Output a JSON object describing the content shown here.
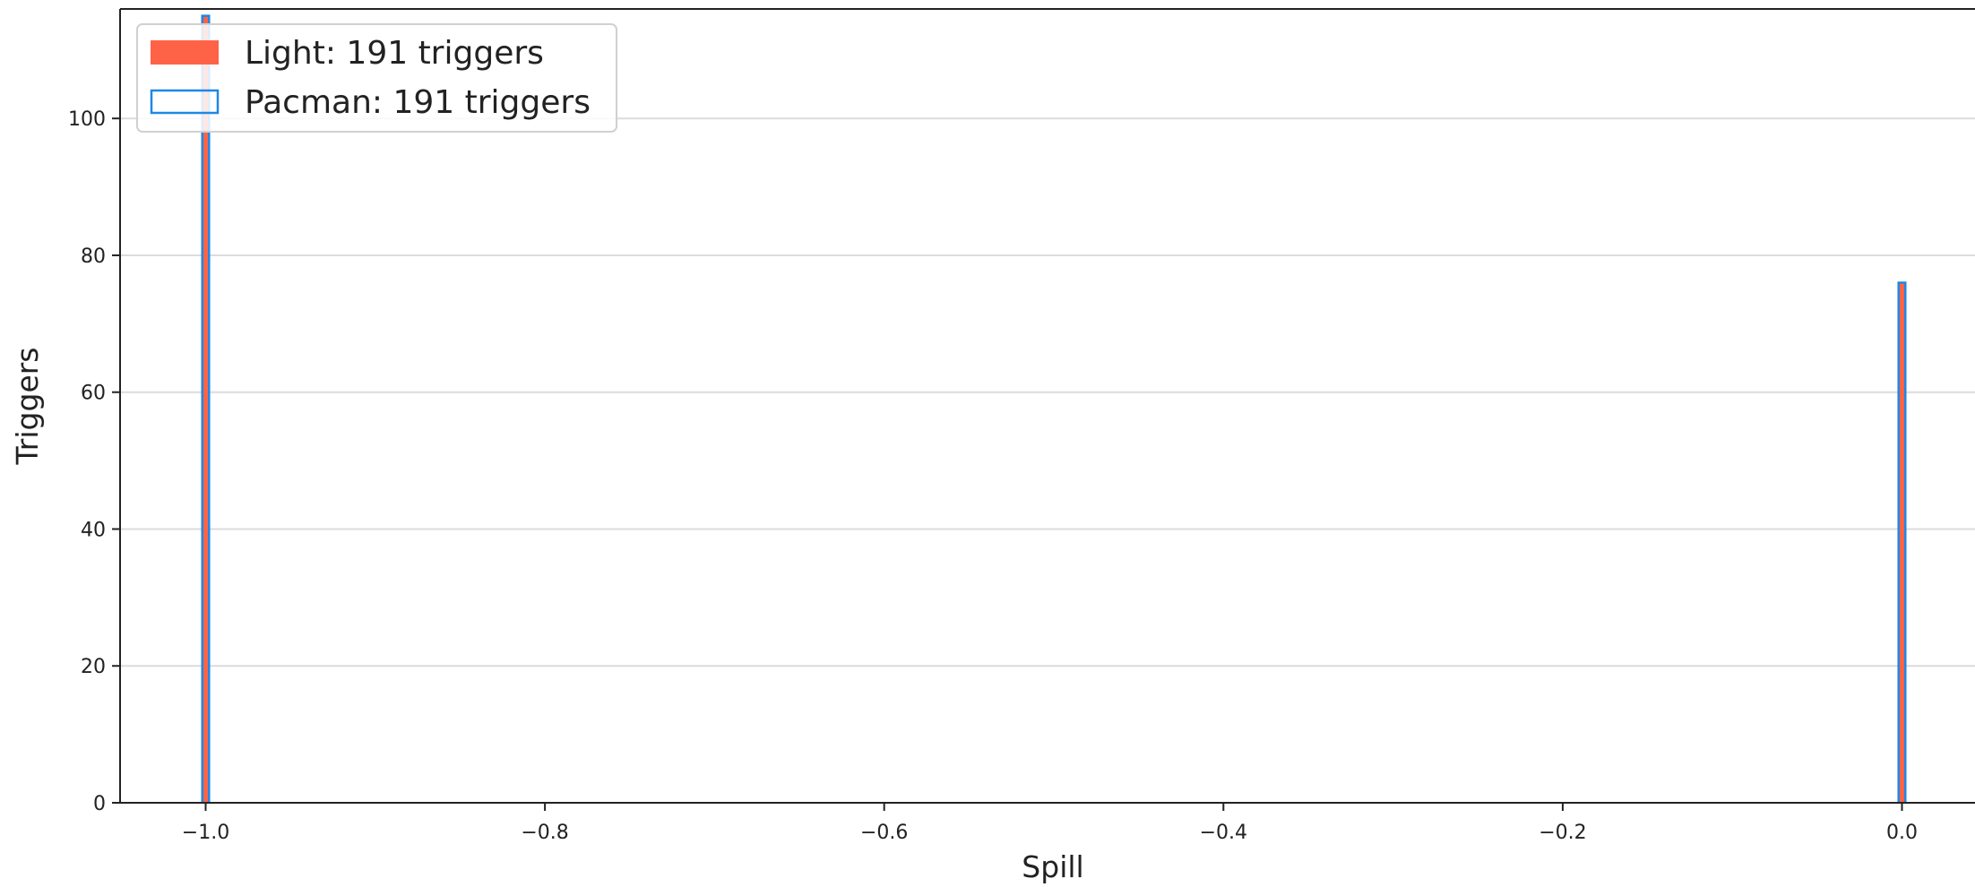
{
  "chart_data": {
    "type": "bar",
    "title": "",
    "xlabel": "Spill",
    "ylabel": "Triggers",
    "xlim": [
      -1.05,
      0.0
    ],
    "ylim": [
      0,
      116
    ],
    "xticks": [
      -1.0,
      -0.8,
      -0.6,
      -0.4,
      -0.2,
      0.0
    ],
    "xtick_labels": [
      "−1.0",
      "−0.8",
      "−0.6",
      "−0.4",
      "−0.2",
      "0.0"
    ],
    "yticks": [
      0,
      20,
      40,
      60,
      80,
      100
    ],
    "ytick_labels": [
      "0",
      "20",
      "40",
      "60",
      "80",
      "100"
    ],
    "grid": "horizontal",
    "legend_position": "top-left",
    "bin_width": 0.004,
    "series": [
      {
        "name": "Light: 191 triggers",
        "style": "filled",
        "color": "#ff6347",
        "x": [
          -1.0,
          0.0
        ],
        "values": [
          115,
          76
        ]
      },
      {
        "name": "Pacman: 191 triggers",
        "style": "step",
        "color": "#1e88e5",
        "x": [
          -1.0,
          0.0
        ],
        "values": [
          115,
          76
        ]
      }
    ]
  }
}
